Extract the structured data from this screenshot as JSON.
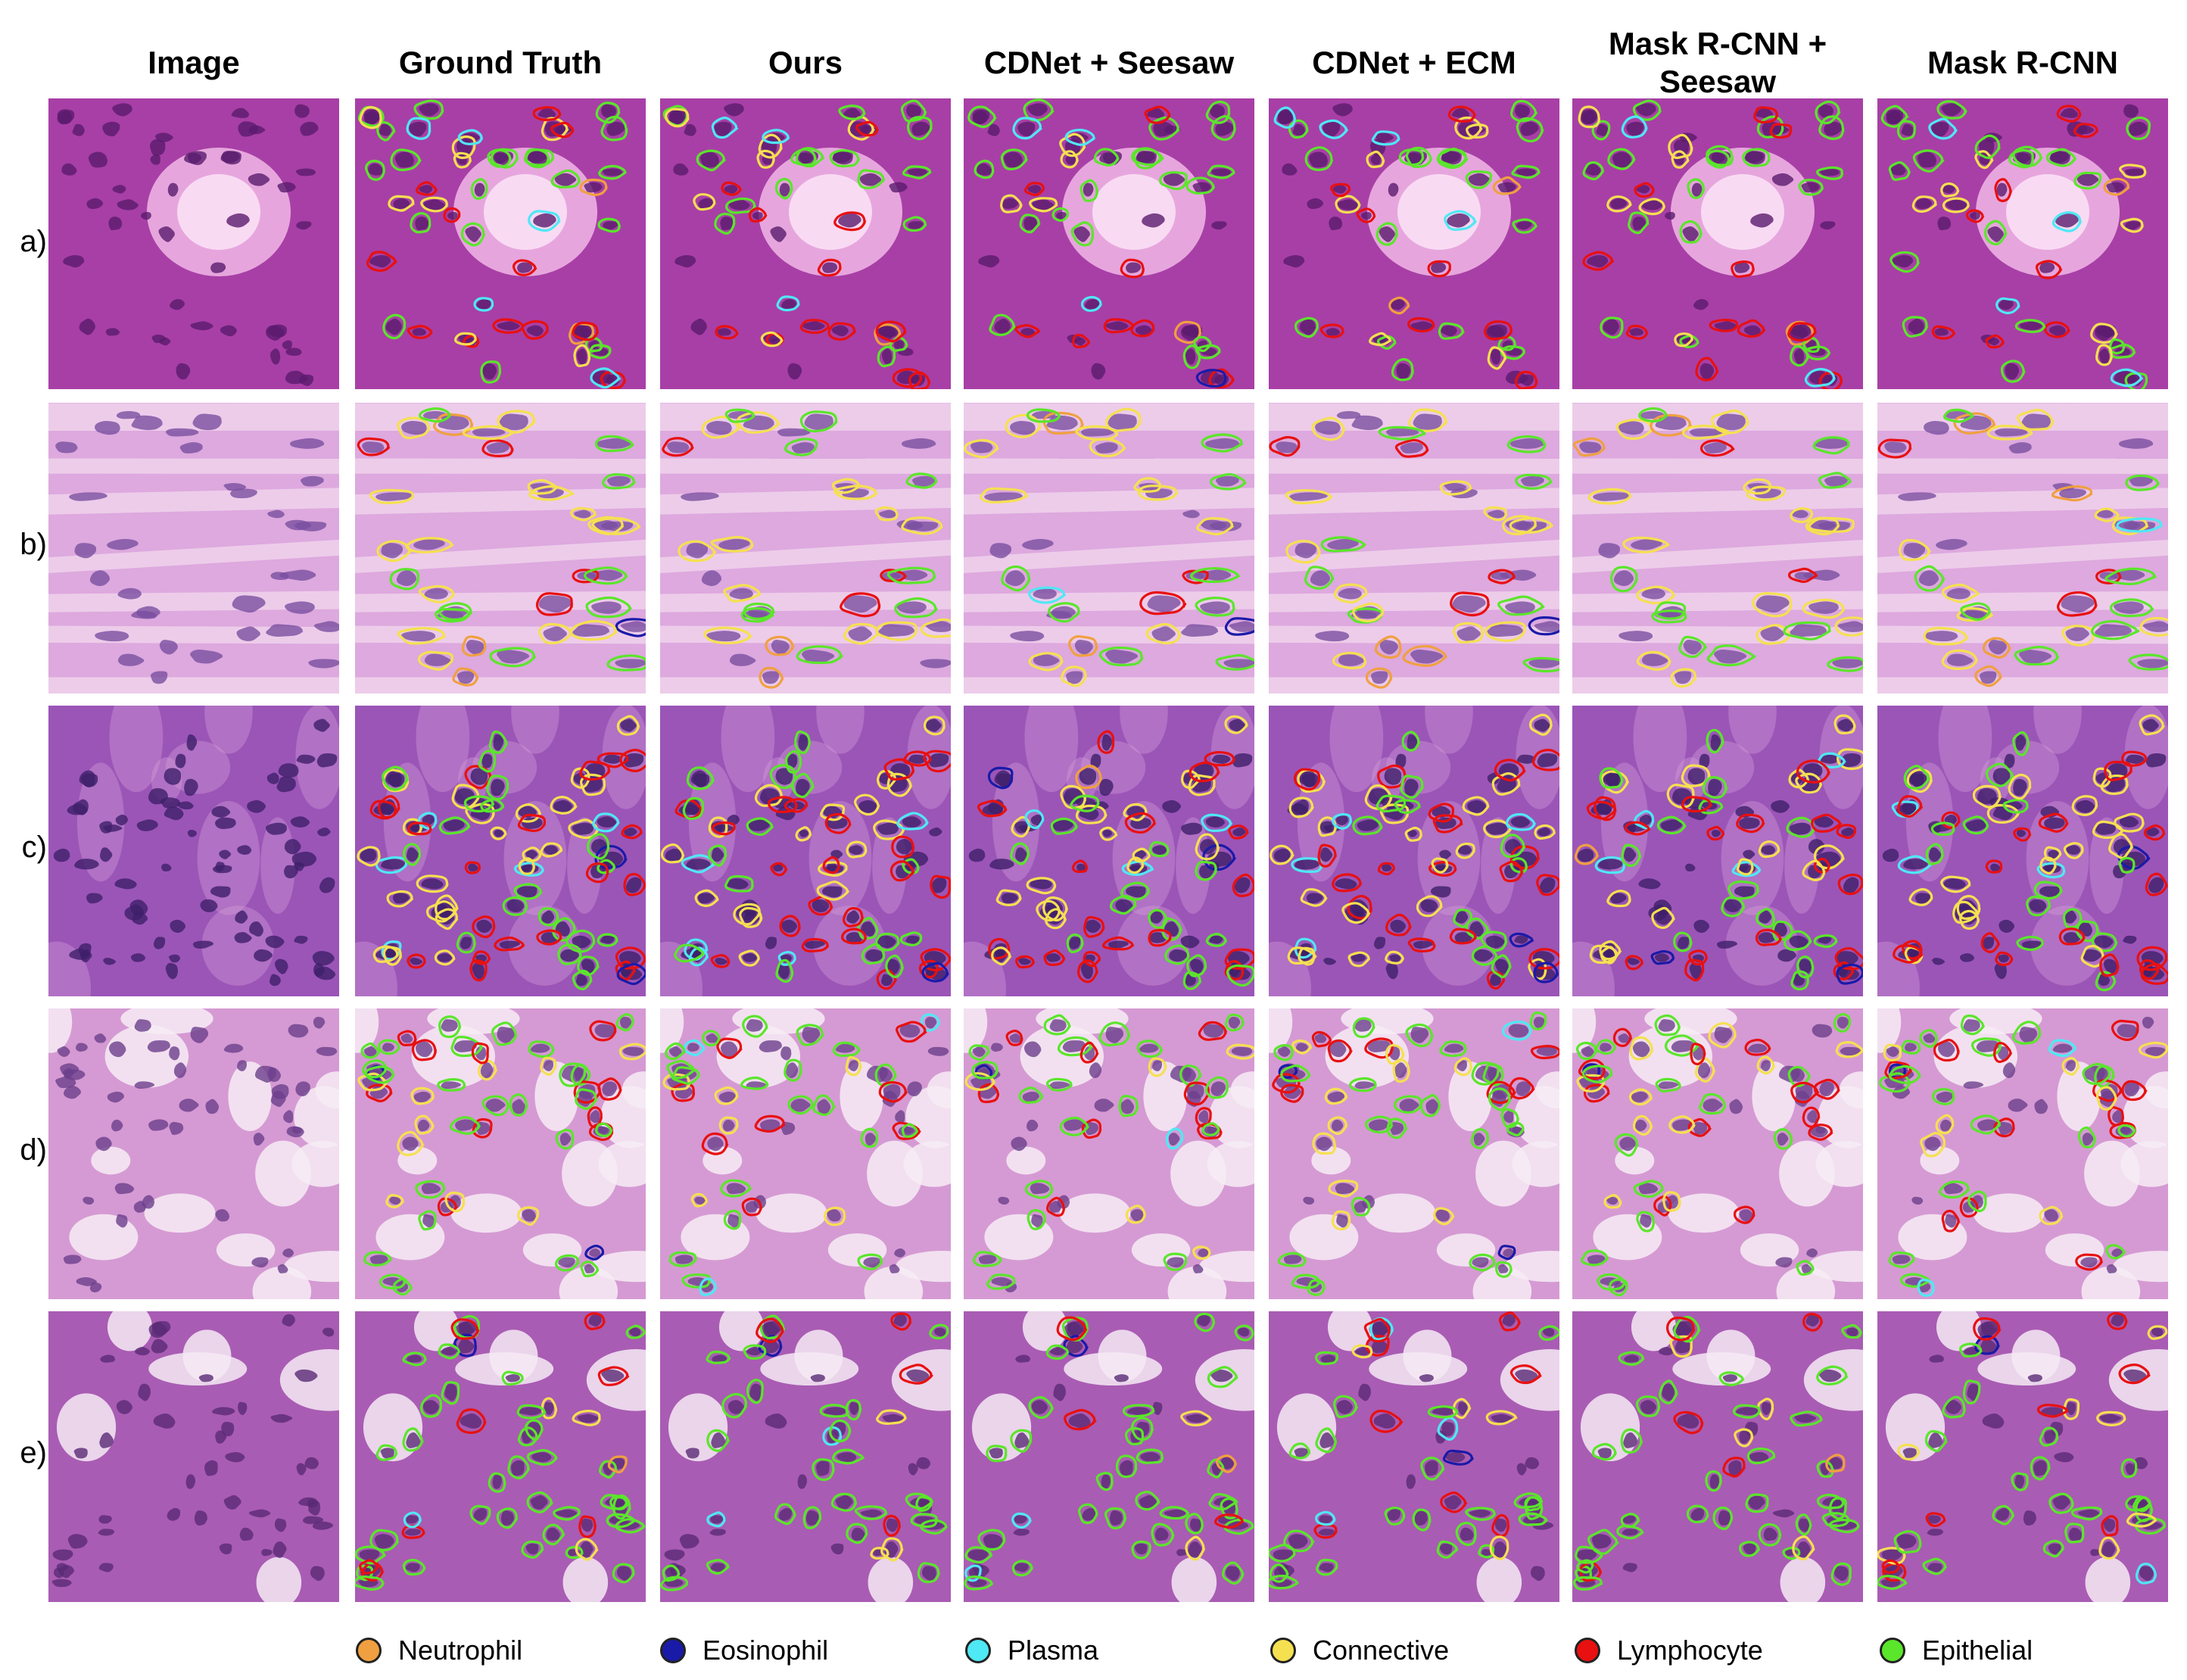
{
  "columns": [
    {
      "header": "Image"
    },
    {
      "header": "Ground Truth"
    },
    {
      "header": "Ours"
    },
    {
      "header": "CDNet + Seesaw"
    },
    {
      "header": "CDNet + ECM"
    },
    {
      "header": "Mask R-CNN +\nSeesaw"
    },
    {
      "header": "Mask R-CNN"
    }
  ],
  "rows": [
    {
      "label": "a)",
      "texture": "gland",
      "tissue_colors": {
        "bg": "#a83fa6",
        "light": "#f1b8e6",
        "dark": "#5a1b6e"
      }
    },
    {
      "label": "b)",
      "texture": "stroma",
      "tissue_colors": {
        "bg": "#dda9de",
        "light": "#f4dcef",
        "dark": "#7a4fa0"
      }
    },
    {
      "label": "c)",
      "texture": "dense",
      "tissue_colors": {
        "bg": "#9b55b7",
        "light": "#d9a6dc",
        "dark": "#3f1f6a"
      }
    },
    {
      "label": "d)",
      "texture": "goblet",
      "tissue_colors": {
        "bg": "#d59ad3",
        "light": "#f7ecf4",
        "dark": "#6b3f8c"
      }
    },
    {
      "label": "e)",
      "texture": "tumor",
      "tissue_colors": {
        "bg": "#a95cb3",
        "light": "#f6eaf5",
        "dark": "#5a2a75"
      }
    }
  ],
  "legend": [
    {
      "label": "Neutrophil",
      "color": "#f0a040"
    },
    {
      "label": "Eosinophil",
      "color": "#1a1aa8"
    },
    {
      "label": "Plasma",
      "color": "#4fe8f5"
    },
    {
      "label": "Connective",
      "color": "#f5e050"
    },
    {
      "label": "Lymphocyte",
      "color": "#e81010"
    },
    {
      "label": "Epithelial",
      "color": "#5ae62a"
    }
  ]
}
